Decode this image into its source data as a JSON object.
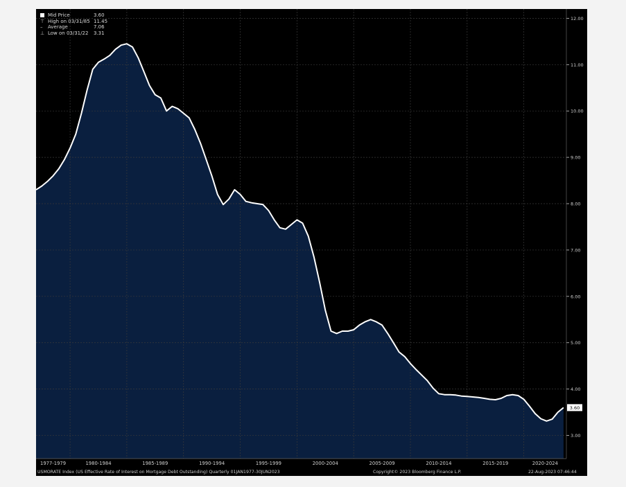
{
  "legend": {
    "mid_price_label": "Mid Price",
    "mid_price_value": "3.60",
    "high_label": "High on 03/31/85",
    "high_value": "11.45",
    "average_label": "Average",
    "average_value": "7.06",
    "low_label": "Low on 03/31/22",
    "low_value": "3.31"
  },
  "last_value_tag": "3.60",
  "footer": {
    "index_text": "USMORATE Index (US Effective Rate of Interest on Mortgage Debt Outstanding)  Quarterly 01JAN1977-30JUN2023",
    "copyright": "Copyright© 2023 Bloomberg Finance L.P.",
    "timestamp": "22-Aug-2023 07:46:44"
  },
  "colors": {
    "background": "#000000",
    "area_fill": "#0a1f3f",
    "line": "#ffffff",
    "grid": "#3a3a3a",
    "axis_text": "#cfcfcf"
  },
  "chart_data": {
    "type": "area",
    "title": "",
    "xlabel": "",
    "ylabel": "",
    "ylim": [
      2.5,
      12.2
    ],
    "xlim": [
      1977.0,
      2023.75
    ],
    "y_axis_side": "right",
    "grid": true,
    "yticks": [
      "3.00",
      "4.00",
      "5.00",
      "6.00",
      "7.00",
      "8.00",
      "9.00",
      "10.00",
      "11.00",
      "12.00"
    ],
    "x_categories": [
      "1977-1979",
      "1980-1984",
      "1985-1989",
      "1990-1994",
      "1995-1999",
      "2000-2004",
      "2005-2009",
      "2010-2014",
      "2015-2019",
      "2020-2024"
    ],
    "series": [
      {
        "x": [
          1977.0,
          1977.5,
          1978.0,
          1978.5,
          1979.0,
          1979.5,
          1980.0,
          1980.5,
          1981.0,
          1981.5,
          1982.0,
          1982.5,
          1983.0,
          1983.5,
          1984.0,
          1984.5,
          1985.0,
          1985.5,
          1986.0,
          1986.5,
          1987.0,
          1987.5,
          1988.0,
          1988.5,
          1989.0,
          1989.5,
          1990.0,
          1990.5,
          1991.0,
          1991.5,
          1992.0,
          1992.5,
          1993.0,
          1993.5,
          1994.0,
          1994.5,
          1995.0,
          1995.5,
          1996.0,
          1996.5,
          1997.0,
          1997.5,
          1998.0,
          1998.5,
          1999.0,
          1999.5,
          2000.0,
          2000.5,
          2001.0,
          2001.5,
          2002.0,
          2002.5,
          2003.0,
          2003.5,
          2004.0,
          2004.5,
          2005.0,
          2005.5,
          2006.0,
          2006.5,
          2007.0,
          2007.5,
          2008.0,
          2008.5,
          2009.0,
          2009.5,
          2010.0,
          2010.5,
          2011.0,
          2011.5,
          2012.0,
          2012.5,
          2013.0,
          2013.5,
          2014.0,
          2014.5,
          2015.0,
          2015.5,
          2016.0,
          2016.5,
          2017.0,
          2017.5,
          2018.0,
          2018.5,
          2019.0,
          2019.5,
          2020.0,
          2020.5,
          2021.0,
          2021.5,
          2022.0,
          2022.5,
          2023.0,
          2023.5
        ],
        "values": [
          8.3,
          8.38,
          8.48,
          8.6,
          8.75,
          8.95,
          9.2,
          9.5,
          9.95,
          10.45,
          10.9,
          11.05,
          11.12,
          11.2,
          11.33,
          11.42,
          11.45,
          11.38,
          11.15,
          10.85,
          10.55,
          10.35,
          10.28,
          10.0,
          10.1,
          10.05,
          9.95,
          9.85,
          9.6,
          9.3,
          8.95,
          8.6,
          8.2,
          7.98,
          8.1,
          8.3,
          8.2,
          8.05,
          8.02,
          8.0,
          7.98,
          7.85,
          7.65,
          7.48,
          7.45,
          7.55,
          7.65,
          7.58,
          7.3,
          6.85,
          6.3,
          5.7,
          5.25,
          5.2,
          5.25,
          5.25,
          5.28,
          5.38,
          5.45,
          5.5,
          5.45,
          5.38,
          5.2,
          5.0,
          4.8,
          4.7,
          4.55,
          4.42,
          4.3,
          4.18,
          4.02,
          3.9,
          3.88,
          3.88,
          3.87,
          3.85,
          3.84,
          3.83,
          3.82,
          3.8,
          3.78,
          3.77,
          3.8,
          3.86,
          3.88,
          3.86,
          3.78,
          3.63,
          3.47,
          3.36,
          3.31,
          3.35,
          3.5,
          3.6
        ]
      }
    ]
  }
}
